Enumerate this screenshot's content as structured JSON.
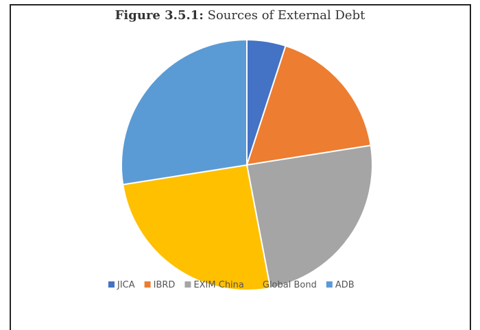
{
  "chart_data": {
    "type": "pie",
    "title_prefix": "Figure 3.5.1:",
    "title": "Sources of External Debt",
    "slices": [
      {
        "label": "JICA",
        "value": 5.0,
        "color": "#4472C4"
      },
      {
        "label": "IBRD",
        "value": 17.5,
        "color": "#ED7D31"
      },
      {
        "label": "EXIM China",
        "value": 24.5,
        "color": "#A5A5A5"
      },
      {
        "label": "Global Bond",
        "value": 25.5,
        "color": "#FFC000"
      },
      {
        "label": "ADB",
        "value": 27.5,
        "color": "#5B9BD5"
      }
    ],
    "legend_position": "bottom"
  }
}
